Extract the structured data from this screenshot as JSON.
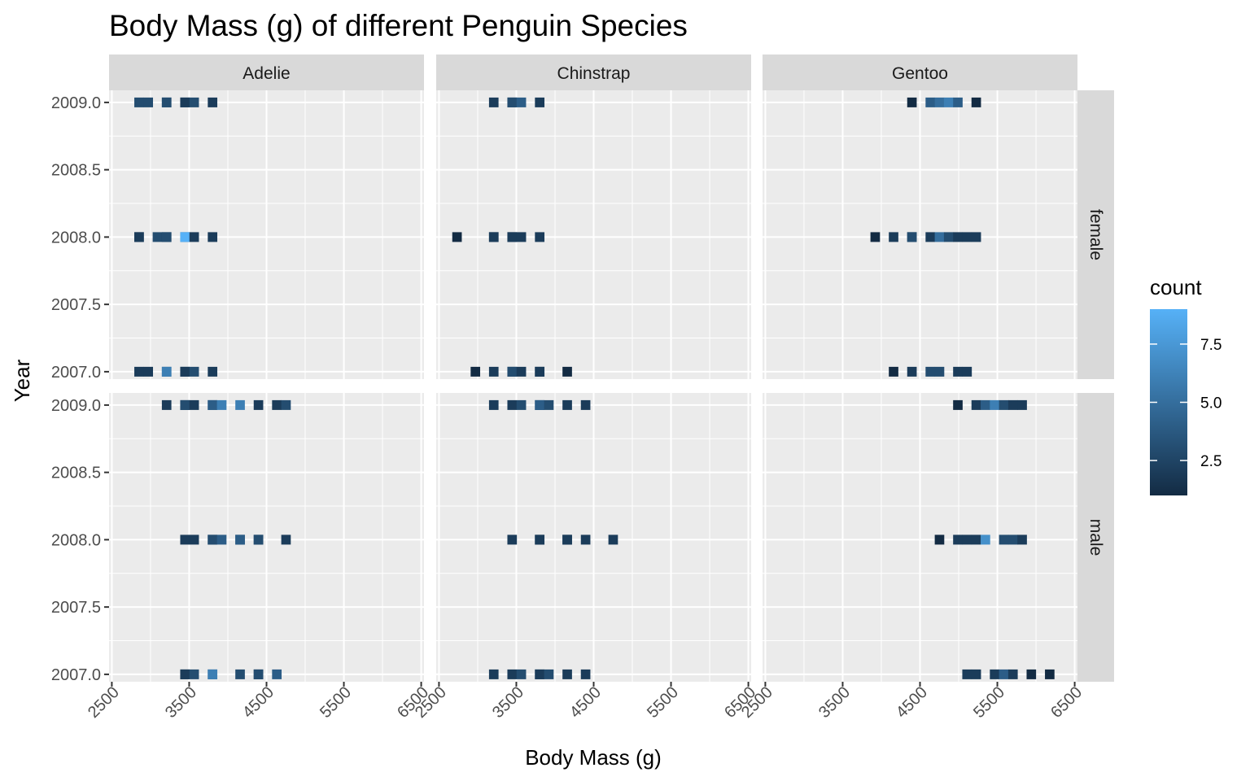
{
  "chart_data": {
    "type": "heatmap",
    "title": "Body Mass (g) of different Penguin Species",
    "xlabel": "Body Mass (g)",
    "ylabel": "Year",
    "xlim": [
      2500,
      6500
    ],
    "ylim": [
      2007,
      2009
    ],
    "x_ticks": [
      "2500",
      "3500",
      "4500",
      "5500",
      "6500"
    ],
    "y_ticks": [
      "2007.0",
      "2007.5",
      "2008.0",
      "2008.5",
      "2009.0"
    ],
    "facet_cols": [
      "Adelie",
      "Chinstrap",
      "Gentoo"
    ],
    "facet_rows": [
      "female",
      "male"
    ],
    "bin_width": 118.75,
    "bin_origin": 2612.5,
    "legend": {
      "title": "count",
      "breaks": [
        "2.5",
        "5.0",
        "7.5"
      ],
      "break_values": [
        2.5,
        5.0,
        7.5
      ],
      "min": 1,
      "max": 9,
      "color_low": "#132B43",
      "color_high": "#56B1F7"
    },
    "panels": [
      {
        "species": "Adelie",
        "sex": "female",
        "cells": [
          {
            "year": 2009,
            "x": 2900,
            "count": 3
          },
          {
            "year": 2009,
            "x": 3000,
            "count": 3
          },
          {
            "year": 2009,
            "x": 3150,
            "count": 4
          },
          {
            "year": 2009,
            "x": 3250,
            "count": 3
          },
          {
            "year": 2009,
            "x": 3400,
            "count": 5
          },
          {
            "year": 2009,
            "x": 3500,
            "count": 2
          },
          {
            "year": 2009,
            "x": 3600,
            "count": 3
          },
          {
            "year": 2009,
            "x": 3750,
            "count": 2
          },
          {
            "year": 2008,
            "x": 2800,
            "count": 2
          },
          {
            "year": 2008,
            "x": 2900,
            "count": 2
          },
          {
            "year": 2008,
            "x": 3050,
            "count": 3
          },
          {
            "year": 2008,
            "x": 3150,
            "count": 2
          },
          {
            "year": 2008,
            "x": 3250,
            "count": 3
          },
          {
            "year": 2008,
            "x": 3400,
            "count": 2
          },
          {
            "year": 2008,
            "x": 3500,
            "count": 9
          },
          {
            "year": 2008,
            "x": 3600,
            "count": 2
          },
          {
            "year": 2008,
            "x": 3750,
            "count": 2
          },
          {
            "year": 2007,
            "x": 2900,
            "count": 2
          },
          {
            "year": 2007,
            "x": 3000,
            "count": 2
          },
          {
            "year": 2007,
            "x": 3150,
            "count": 4
          },
          {
            "year": 2007,
            "x": 3250,
            "count": 6
          },
          {
            "year": 2007,
            "x": 3400,
            "count": 3
          },
          {
            "year": 2007,
            "x": 3500,
            "count": 2
          },
          {
            "year": 2007,
            "x": 3600,
            "count": 3
          },
          {
            "year": 2007,
            "x": 3750,
            "count": 2
          }
        ]
      },
      {
        "species": "Chinstrap",
        "sex": "female",
        "cells": [
          {
            "year": 2009,
            "x": 3250,
            "count": 2
          },
          {
            "year": 2009,
            "x": 3400,
            "count": 3
          },
          {
            "year": 2009,
            "x": 3500,
            "count": 3
          },
          {
            "year": 2009,
            "x": 3600,
            "count": 4
          },
          {
            "year": 2009,
            "x": 3750,
            "count": 2
          },
          {
            "year": 2008,
            "x": 2700,
            "count": 1
          },
          {
            "year": 2008,
            "x": 3150,
            "count": 2
          },
          {
            "year": 2008,
            "x": 3250,
            "count": 2
          },
          {
            "year": 2008,
            "x": 3400,
            "count": 2
          },
          {
            "year": 2008,
            "x": 3500,
            "count": 2
          },
          {
            "year": 2008,
            "x": 3600,
            "count": 2
          },
          {
            "year": 2008,
            "x": 3850,
            "count": 2
          },
          {
            "year": 2007,
            "x": 2950,
            "count": 1
          },
          {
            "year": 2007,
            "x": 3250,
            "count": 2
          },
          {
            "year": 2007,
            "x": 3400,
            "count": 2
          },
          {
            "year": 2007,
            "x": 3500,
            "count": 3
          },
          {
            "year": 2007,
            "x": 3600,
            "count": 2
          },
          {
            "year": 2007,
            "x": 3750,
            "count": 2
          },
          {
            "year": 2007,
            "x": 3850,
            "count": 2
          },
          {
            "year": 2007,
            "x": 4100,
            "count": 1
          }
        ]
      },
      {
        "species": "Gentoo",
        "sex": "female",
        "cells": [
          {
            "year": 2009,
            "x": 4350,
            "count": 1
          },
          {
            "year": 2009,
            "x": 4600,
            "count": 4
          },
          {
            "year": 2009,
            "x": 4700,
            "count": 5
          },
          {
            "year": 2009,
            "x": 4850,
            "count": 6
          },
          {
            "year": 2009,
            "x": 4950,
            "count": 4
          },
          {
            "year": 2009,
            "x": 5200,
            "count": 1
          },
          {
            "year": 2008,
            "x": 3950,
            "count": 1
          },
          {
            "year": 2008,
            "x": 4200,
            "count": 2
          },
          {
            "year": 2008,
            "x": 4350,
            "count": 2
          },
          {
            "year": 2008,
            "x": 4450,
            "count": 3
          },
          {
            "year": 2008,
            "x": 4600,
            "count": 2
          },
          {
            "year": 2008,
            "x": 4700,
            "count": 5
          },
          {
            "year": 2008,
            "x": 4850,
            "count": 3
          },
          {
            "year": 2008,
            "x": 4950,
            "count": 2
          },
          {
            "year": 2008,
            "x": 5050,
            "count": 2
          },
          {
            "year": 2008,
            "x": 5200,
            "count": 2
          },
          {
            "year": 2007,
            "x": 4200,
            "count": 1
          },
          {
            "year": 2007,
            "x": 4450,
            "count": 2
          },
          {
            "year": 2007,
            "x": 4600,
            "count": 3
          },
          {
            "year": 2007,
            "x": 4700,
            "count": 3
          },
          {
            "year": 2007,
            "x": 4950,
            "count": 2
          },
          {
            "year": 2007,
            "x": 5050,
            "count": 2
          }
        ]
      },
      {
        "species": "Adelie",
        "sex": "male",
        "cells": [
          {
            "year": 2009,
            "x": 3250,
            "count": 2
          },
          {
            "year": 2009,
            "x": 3400,
            "count": 2
          },
          {
            "year": 2009,
            "x": 3500,
            "count": 3
          },
          {
            "year": 2009,
            "x": 3600,
            "count": 2
          },
          {
            "year": 2009,
            "x": 3750,
            "count": 4
          },
          {
            "year": 2009,
            "x": 3850,
            "count": 4
          },
          {
            "year": 2009,
            "x": 3950,
            "count": 6
          },
          {
            "year": 2009,
            "x": 4200,
            "count": 6
          },
          {
            "year": 2009,
            "x": 4450,
            "count": 2
          },
          {
            "year": 2009,
            "x": 4600,
            "count": 2
          },
          {
            "year": 2009,
            "x": 4700,
            "count": 3
          },
          {
            "year": 2008,
            "x": 3500,
            "count": 2
          },
          {
            "year": 2008,
            "x": 3600,
            "count": 2
          },
          {
            "year": 2008,
            "x": 3750,
            "count": 3
          },
          {
            "year": 2008,
            "x": 3850,
            "count": 3
          },
          {
            "year": 2008,
            "x": 3950,
            "count": 4
          },
          {
            "year": 2008,
            "x": 4100,
            "count": 3
          },
          {
            "year": 2008,
            "x": 4200,
            "count": 4
          },
          {
            "year": 2008,
            "x": 4350,
            "count": 3
          },
          {
            "year": 2008,
            "x": 4450,
            "count": 3
          },
          {
            "year": 2008,
            "x": 4700,
            "count": 2
          },
          {
            "year": 2007,
            "x": 3400,
            "count": 2
          },
          {
            "year": 2007,
            "x": 3500,
            "count": 2
          },
          {
            "year": 2007,
            "x": 3600,
            "count": 3
          },
          {
            "year": 2007,
            "x": 3750,
            "count": 4
          },
          {
            "year": 2007,
            "x": 3850,
            "count": 6
          },
          {
            "year": 2007,
            "x": 4100,
            "count": 3
          },
          {
            "year": 2007,
            "x": 4350,
            "count": 2
          },
          {
            "year": 2007,
            "x": 4450,
            "count": 3
          },
          {
            "year": 2007,
            "x": 4600,
            "count": 4
          }
        ]
      },
      {
        "species": "Chinstrap",
        "sex": "male",
        "cells": [
          {
            "year": 2009,
            "x": 3250,
            "count": 2
          },
          {
            "year": 2009,
            "x": 3400,
            "count": 2
          },
          {
            "year": 2009,
            "x": 3600,
            "count": 3
          },
          {
            "year": 2009,
            "x": 3750,
            "count": 3
          },
          {
            "year": 2009,
            "x": 3850,
            "count": 4
          },
          {
            "year": 2009,
            "x": 3950,
            "count": 3
          },
          {
            "year": 2009,
            "x": 4100,
            "count": 2
          },
          {
            "year": 2009,
            "x": 4350,
            "count": 2
          },
          {
            "year": 2008,
            "x": 3500,
            "count": 2
          },
          {
            "year": 2008,
            "x": 3750,
            "count": 2
          },
          {
            "year": 2008,
            "x": 3850,
            "count": 2
          },
          {
            "year": 2008,
            "x": 4100,
            "count": 2
          },
          {
            "year": 2008,
            "x": 4200,
            "count": 2
          },
          {
            "year": 2008,
            "x": 4450,
            "count": 2
          },
          {
            "year": 2008,
            "x": 4700,
            "count": 2
          },
          {
            "year": 2007,
            "x": 3250,
            "count": 2
          },
          {
            "year": 2007,
            "x": 3400,
            "count": 2
          },
          {
            "year": 2007,
            "x": 3600,
            "count": 3
          },
          {
            "year": 2007,
            "x": 3750,
            "count": 4
          },
          {
            "year": 2007,
            "x": 3850,
            "count": 2
          },
          {
            "year": 2007,
            "x": 3950,
            "count": 3
          },
          {
            "year": 2007,
            "x": 4100,
            "count": 2
          },
          {
            "year": 2007,
            "x": 4350,
            "count": 2
          }
        ]
      },
      {
        "species": "Gentoo",
        "sex": "male",
        "cells": [
          {
            "year": 2009,
            "x": 4950,
            "count": 1
          },
          {
            "year": 2009,
            "x": 5200,
            "count": 2
          },
          {
            "year": 2009,
            "x": 5300,
            "count": 4
          },
          {
            "year": 2009,
            "x": 5450,
            "count": 6
          },
          {
            "year": 2009,
            "x": 5550,
            "count": 3
          },
          {
            "year": 2009,
            "x": 5700,
            "count": 2
          },
          {
            "year": 2009,
            "x": 5800,
            "count": 2
          },
          {
            "year": 2008,
            "x": 4700,
            "count": 1
          },
          {
            "year": 2008,
            "x": 4950,
            "count": 2
          },
          {
            "year": 2008,
            "x": 5050,
            "count": 2
          },
          {
            "year": 2008,
            "x": 5200,
            "count": 2
          },
          {
            "year": 2008,
            "x": 5300,
            "count": 7
          },
          {
            "year": 2008,
            "x": 5550,
            "count": 3
          },
          {
            "year": 2008,
            "x": 5700,
            "count": 3
          },
          {
            "year": 2008,
            "x": 5800,
            "count": 2
          },
          {
            "year": 2007,
            "x": 5050,
            "count": 2
          },
          {
            "year": 2007,
            "x": 5200,
            "count": 2
          },
          {
            "year": 2007,
            "x": 5450,
            "count": 2
          },
          {
            "year": 2007,
            "x": 5550,
            "count": 4
          },
          {
            "year": 2007,
            "x": 5700,
            "count": 2
          },
          {
            "year": 2007,
            "x": 5950,
            "count": 1
          },
          {
            "year": 2007,
            "x": 6200,
            "count": 1
          }
        ]
      }
    ]
  }
}
